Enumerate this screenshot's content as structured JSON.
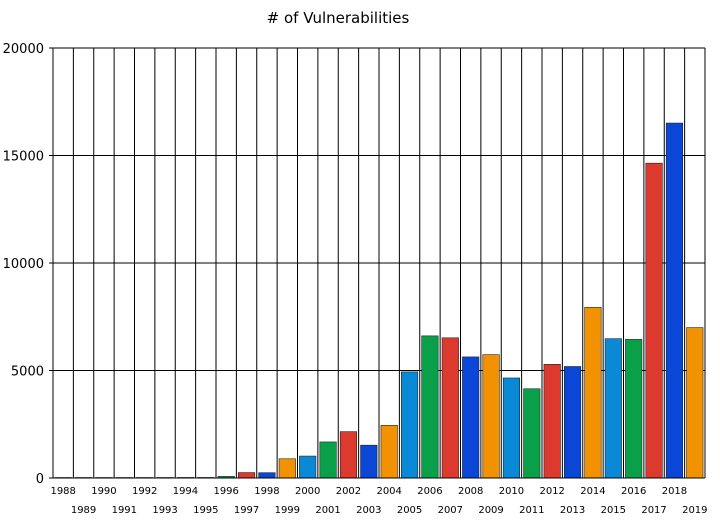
{
  "chart_data": {
    "type": "bar",
    "title": "# of Vulnerabilities",
    "xlabel": "",
    "ylabel": "",
    "ylim": [
      0,
      20000
    ],
    "yticks": [
      0,
      5000,
      10000,
      15000,
      20000
    ],
    "grid": true,
    "categories": [
      "1988",
      "1989",
      "1990",
      "1991",
      "1992",
      "1993",
      "1994",
      "1995",
      "1996",
      "1997",
      "1998",
      "1999",
      "2000",
      "2001",
      "2002",
      "2003",
      "2004",
      "2005",
      "2006",
      "2007",
      "2008",
      "2009",
      "2010",
      "2011",
      "2012",
      "2013",
      "2014",
      "2015",
      "2016",
      "2017",
      "2018",
      "2019"
    ],
    "values": [
      2,
      3,
      11,
      15,
      13,
      13,
      25,
      25,
      75,
      252,
      246,
      894,
      1020,
      1677,
      2156,
      1527,
      2451,
      4935,
      6610,
      6520,
      5632,
      5736,
      4652,
      4150,
      5288,
      5186,
      7937,
      6480,
      6447,
      14643,
      16509,
      6996
    ],
    "colors": [
      "#0a47d6",
      "#f39200",
      "#0a8ad6",
      "#0aa04a",
      "#dc3a2e"
    ]
  }
}
